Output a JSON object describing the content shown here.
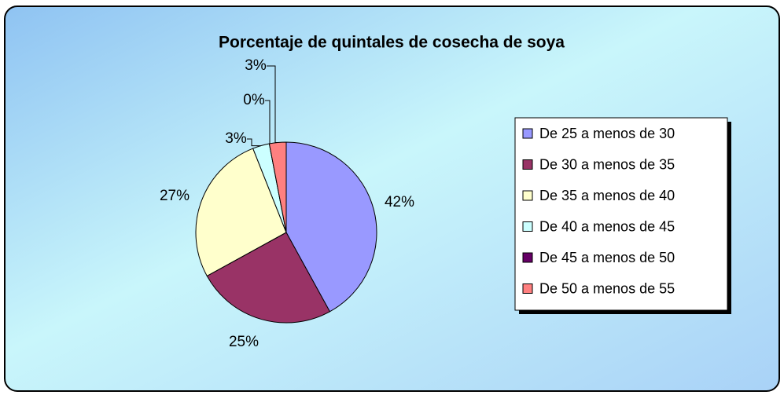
{
  "chart_data": {
    "type": "pie",
    "title": "Porcentaje de quintales de cosecha de soya",
    "categories": [
      "De 25 a menos de 30",
      "De 30 a menos de 35",
      "De 35 a menos de 40",
      "De 40 a menos de 45",
      "De 45 a menos de 50",
      "De 50 a menos de 55"
    ],
    "values": [
      42,
      25,
      27,
      3,
      0,
      3
    ],
    "value_labels": [
      "42%",
      "25%",
      "27%",
      "3%",
      "0%",
      "3%"
    ],
    "colors": [
      "#9999ff",
      "#993366",
      "#ffffcc",
      "#ccffff",
      "#660066",
      "#ff8080"
    ],
    "legend": "right"
  }
}
